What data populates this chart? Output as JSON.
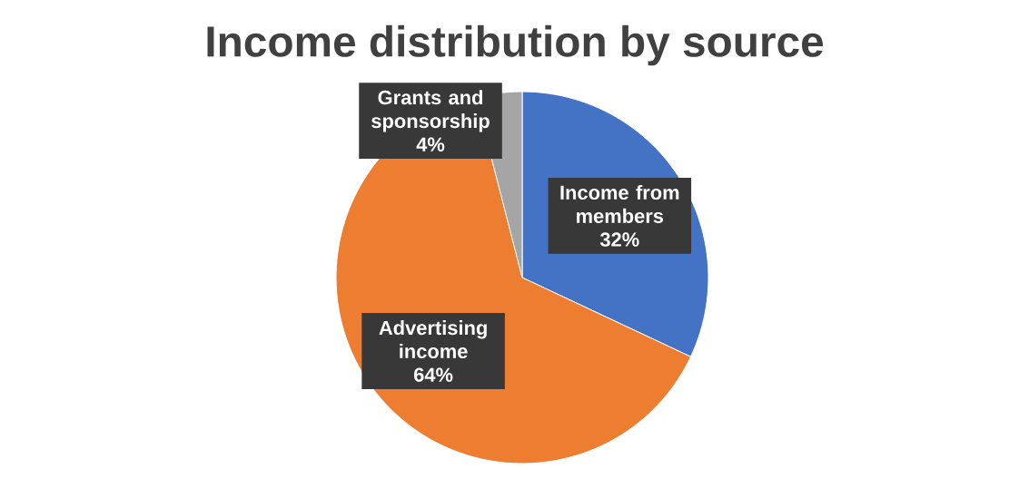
{
  "chart_data": {
    "type": "pie",
    "title": "Income distribution by source",
    "categories": [
      "Income from members",
      "Advertising income",
      "Grants and sponsorship"
    ],
    "values": [
      32,
      64,
      4
    ],
    "value_labels": [
      "32%",
      "64%",
      "4%"
    ],
    "colors": [
      "#4472c4",
      "#ed7d31",
      "#a5a5a5"
    ],
    "legend": false
  }
}
